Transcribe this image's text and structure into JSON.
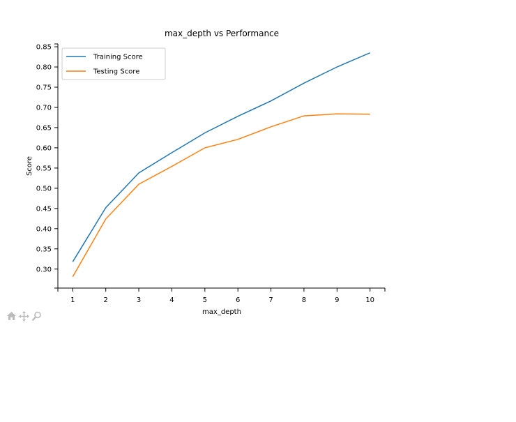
{
  "chart_data": {
    "type": "line",
    "title": "max_depth vs Performance",
    "xlabel": "max_depth",
    "ylabel": "Score",
    "x": [
      1,
      2,
      3,
      4,
      5,
      6,
      7,
      8,
      9,
      10
    ],
    "xlim": [
      0.55,
      10.45
    ],
    "ylim": [
      0.253,
      0.857
    ],
    "yticks": [
      0.3,
      0.35,
      0.4,
      0.45,
      0.5,
      0.55,
      0.6,
      0.65,
      0.7,
      0.75,
      0.8,
      0.85
    ],
    "grid": false,
    "legend": "top-left",
    "series": [
      {
        "name": "Training Score",
        "color": "#1f77b4",
        "values": [
          0.318,
          0.452,
          0.538,
          0.588,
          0.637,
          0.678,
          0.716,
          0.76,
          0.8,
          0.835
        ]
      },
      {
        "name": "Testing Score",
        "color": "#ff7f0e",
        "values": [
          0.281,
          0.424,
          0.51,
          0.554,
          0.6,
          0.621,
          0.652,
          0.679,
          0.684,
          0.683
        ]
      }
    ]
  },
  "toolbar": {
    "items": [
      {
        "name": "home",
        "icon": "home-icon"
      },
      {
        "name": "pan",
        "icon": "move-icon"
      },
      {
        "name": "zoom",
        "icon": "magnifier-icon"
      }
    ]
  }
}
